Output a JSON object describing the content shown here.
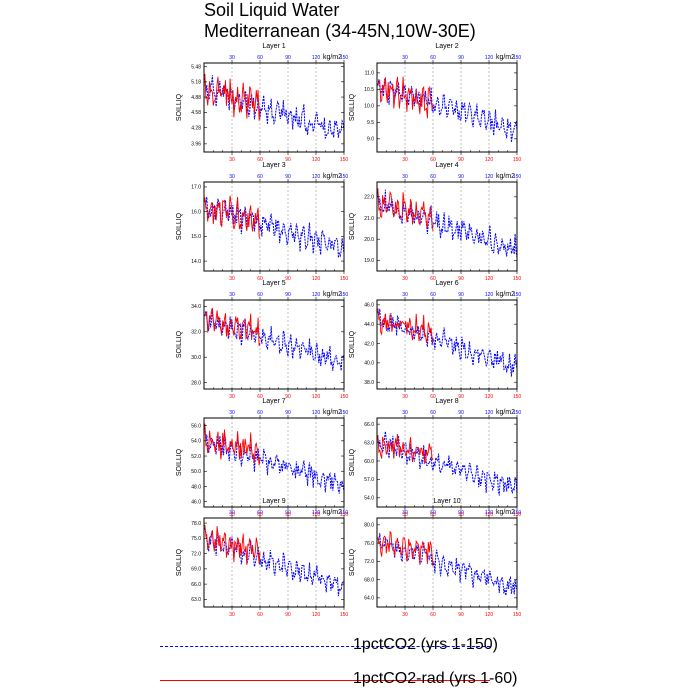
{
  "title": {
    "line1": "Soil Liquid Water",
    "line2": "Mediterranean (34-45N,10W-30E)"
  },
  "colors": {
    "series1": "#0000ff",
    "series2": "#ff0000",
    "axis": "#000000",
    "grid": "#9a9a9a"
  },
  "legend": {
    "items": [
      {
        "label": "1pctCO2 (yrs 1-150)",
        "color": "#0000ff",
        "style": "dashed"
      },
      {
        "label": "1pctCO2-rad (yrs 1-60)",
        "color": "#ff0000",
        "style": "solid"
      }
    ]
  },
  "chart_data": [
    {
      "type": "line",
      "title": "Layer 1",
      "ylabel": "SOILLIQ",
      "units": "kg/m2",
      "xlim": [
        0,
        150
      ],
      "x_ticks_top": [
        "30",
        "60",
        "90",
        "120",
        "150"
      ],
      "x_ticks_bottom": [
        "30",
        "60",
        "90",
        "120",
        "150"
      ],
      "y_ticks": [
        "3.96",
        "4.28",
        "4.58",
        "4.88",
        "5.18",
        "5.48"
      ],
      "ylim": [
        3.8,
        5.55
      ],
      "series": [
        {
          "x_range": [
            1,
            150
          ],
          "start": 5.05,
          "end": 4.15,
          "amplitude": 0.28
        },
        {
          "x_range": [
            1,
            60
          ],
          "start": 5.05,
          "end": 4.75,
          "amplitude": 0.35
        }
      ]
    },
    {
      "type": "line",
      "title": "Layer 2",
      "ylabel": "SOILLIQ",
      "units": "kg/m2",
      "xlim": [
        0,
        150
      ],
      "x_ticks_top": [
        "30",
        "60",
        "90",
        "120",
        "150"
      ],
      "x_ticks_bottom": [
        "30",
        "60",
        "90",
        "120",
        "150"
      ],
      "y_ticks": [
        "9.0",
        "9.5",
        "10.0",
        "10.5",
        "11.0"
      ],
      "ylim": [
        8.6,
        11.3
      ],
      "series": [
        {
          "x_range": [
            1,
            150
          ],
          "start": 10.6,
          "end": 9.3,
          "amplitude": 0.4
        },
        {
          "x_range": [
            1,
            60
          ],
          "start": 10.6,
          "end": 10.1,
          "amplitude": 0.5
        }
      ]
    },
    {
      "type": "line",
      "title": "Layer 3",
      "ylabel": "SOILLIQ",
      "units": "kg/m2",
      "xlim": [
        0,
        150
      ],
      "x_ticks_top": [
        "30",
        "60",
        "90",
        "120",
        "150"
      ],
      "x_ticks_bottom": [
        "30",
        "60",
        "90",
        "120",
        "150"
      ],
      "y_ticks": [
        "14.0",
        "15.0",
        "16.0",
        "17.0"
      ],
      "ylim": [
        13.6,
        17.2
      ],
      "series": [
        {
          "x_range": [
            1,
            150
          ],
          "start": 16.2,
          "end": 14.5,
          "amplitude": 0.55
        },
        {
          "x_range": [
            1,
            60
          ],
          "start": 16.2,
          "end": 15.6,
          "amplitude": 0.65
        }
      ]
    },
    {
      "type": "line",
      "title": "Layer 4",
      "ylabel": "SOILLIQ",
      "units": "kg/m2",
      "xlim": [
        0,
        150
      ],
      "x_ticks_top": [
        "30",
        "60",
        "90",
        "120",
        "150"
      ],
      "x_ticks_bottom": [
        "30",
        "60",
        "90",
        "120",
        "150"
      ],
      "y_ticks": [
        "19.0",
        "20.0",
        "21.0",
        "22.0"
      ],
      "ylim": [
        18.5,
        22.7
      ],
      "series": [
        {
          "x_range": [
            1,
            150
          ],
          "start": 21.7,
          "end": 19.5,
          "amplitude": 0.6
        },
        {
          "x_range": [
            1,
            60
          ],
          "start": 21.7,
          "end": 21.0,
          "amplitude": 0.7
        }
      ]
    },
    {
      "type": "line",
      "title": "Layer 5",
      "ylabel": "SOILLIQ",
      "units": "kg/m2",
      "xlim": [
        0,
        150
      ],
      "x_ticks_top": [
        "30",
        "60",
        "90",
        "120",
        "150"
      ],
      "x_ticks_bottom": [
        "30",
        "60",
        "90",
        "120",
        "150"
      ],
      "y_ticks": [
        "28.0",
        "30.0",
        "32.0",
        "34.0"
      ],
      "ylim": [
        27.5,
        34.5
      ],
      "series": [
        {
          "x_range": [
            1,
            150
          ],
          "start": 33.0,
          "end": 29.5,
          "amplitude": 1.0
        },
        {
          "x_range": [
            1,
            60
          ],
          "start": 33.0,
          "end": 32.0,
          "amplitude": 1.2
        }
      ]
    },
    {
      "type": "line",
      "title": "Layer 6",
      "ylabel": "SOILLIQ",
      "units": "kg/m2",
      "xlim": [
        0,
        150
      ],
      "x_ticks_top": [
        "30",
        "60",
        "90",
        "120",
        "150"
      ],
      "x_ticks_bottom": [
        "30",
        "60",
        "90",
        "120",
        "150"
      ],
      "y_ticks": [
        "38.0",
        "40.0",
        "42.0",
        "44.0",
        "46.0"
      ],
      "ylim": [
        37.3,
        46.5
      ],
      "series": [
        {
          "x_range": [
            1,
            150
          ],
          "start": 44.5,
          "end": 39.5,
          "amplitude": 1.3
        },
        {
          "x_range": [
            1,
            60
          ],
          "start": 44.5,
          "end": 43.0,
          "amplitude": 1.5
        }
      ]
    },
    {
      "type": "line",
      "title": "Layer 7",
      "ylabel": "SOILLIQ",
      "units": "kg/m2",
      "xlim": [
        0,
        150
      ],
      "x_ticks_top": [
        "30",
        "60",
        "90",
        "120",
        "150"
      ],
      "x_ticks_bottom": [
        "30",
        "60",
        "90",
        "120",
        "150"
      ],
      "y_ticks": [
        "46.0",
        "48.0",
        "50.0",
        "52.0",
        "54.0",
        "56.0"
      ],
      "ylim": [
        45.3,
        57.0
      ],
      "series": [
        {
          "x_range": [
            1,
            150
          ],
          "start": 54.0,
          "end": 48.0,
          "amplitude": 1.6
        },
        {
          "x_range": [
            1,
            60
          ],
          "start": 54.0,
          "end": 52.5,
          "amplitude": 1.9
        }
      ]
    },
    {
      "type": "line",
      "title": "Layer 8",
      "ylabel": "SOILLIQ",
      "units": "kg/m2",
      "xlim": [
        0,
        150
      ],
      "x_ticks_top": [
        "30",
        "60",
        "90",
        "120",
        "150"
      ],
      "x_ticks_bottom": [
        "30",
        "60",
        "90",
        "120",
        "150"
      ],
      "y_ticks": [
        "54.0",
        "57.0",
        "60.0",
        "63.0",
        "66.0"
      ],
      "ylim": [
        52.5,
        67.0
      ],
      "series": [
        {
          "x_range": [
            1,
            150
          ],
          "start": 63.0,
          "end": 55.5,
          "amplitude": 2.0
        },
        {
          "x_range": [
            1,
            60
          ],
          "start": 63.0,
          "end": 61.0,
          "amplitude": 2.4
        }
      ]
    },
    {
      "type": "line",
      "title": "Layer 9",
      "ylabel": "SOILLIQ",
      "units": "kg/m2",
      "xlim": [
        0,
        150
      ],
      "x_ticks_top": [
        "30",
        "60",
        "90",
        "120",
        "150"
      ],
      "x_ticks_bottom": [
        "30",
        "60",
        "90",
        "120",
        "150"
      ],
      "y_ticks": [
        "63.0",
        "66.0",
        "69.0",
        "72.0",
        "75.0",
        "78.0"
      ],
      "ylim": [
        61.5,
        79.0
      ],
      "series": [
        {
          "x_range": [
            1,
            150
          ],
          "start": 75.0,
          "end": 65.5,
          "amplitude": 2.4
        },
        {
          "x_range": [
            1,
            60
          ],
          "start": 75.0,
          "end": 72.5,
          "amplitude": 2.8
        }
      ]
    },
    {
      "type": "line",
      "title": "Layer 10",
      "ylabel": "SOILLIQ",
      "units": "kg/m2",
      "xlim": [
        0,
        150
      ],
      "x_ticks_top": [
        "30",
        "60",
        "90",
        "120",
        "150"
      ],
      "x_ticks_bottom": [
        "30",
        "60",
        "90",
        "120",
        "150"
      ],
      "y_ticks": [
        "64.0",
        "68.0",
        "72.0",
        "76.0",
        "80.0"
      ],
      "ylim": [
        62.0,
        81.5
      ],
      "series": [
        {
          "x_range": [
            1,
            150
          ],
          "start": 76.5,
          "end": 66.0,
          "amplitude": 2.6
        },
        {
          "x_range": [
            1,
            60
          ],
          "start": 76.5,
          "end": 74.0,
          "amplitude": 3.0
        }
      ]
    }
  ]
}
